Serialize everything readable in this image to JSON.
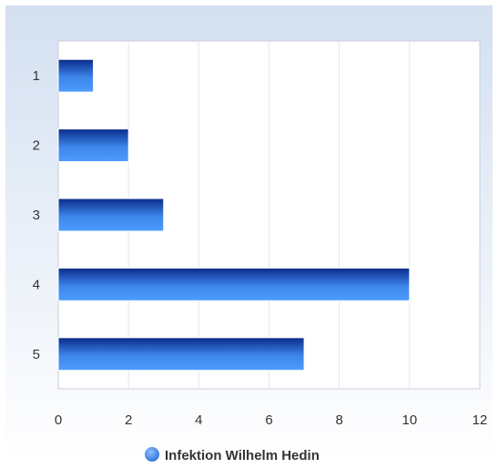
{
  "chart_data": {
    "type": "bar",
    "orientation": "horizontal",
    "categories": [
      "1",
      "2",
      "3",
      "4",
      "5"
    ],
    "series": [
      {
        "name": "Infektion Wilhelm Hedin",
        "values": [
          1,
          2,
          3,
          10,
          7
        ]
      }
    ],
    "xlim": [
      0,
      12
    ],
    "x_ticks": [
      0,
      2,
      4,
      6,
      8,
      10,
      12
    ],
    "title": "",
    "xlabel": "",
    "ylabel": "",
    "grid": true,
    "legend_position": "bottom"
  },
  "colors": {
    "bar_dark": "#0a2a8a",
    "bar_mid": "#3d86ea",
    "bar_light": "#4f9bff",
    "legend_marker": "#2f6fd8",
    "background_top": "#d3e0f1",
    "background_bottom": "#ffffff",
    "plot_bg": "#ffffff",
    "grid": "#e3e7ec",
    "axis_border": "#c8ced6"
  }
}
